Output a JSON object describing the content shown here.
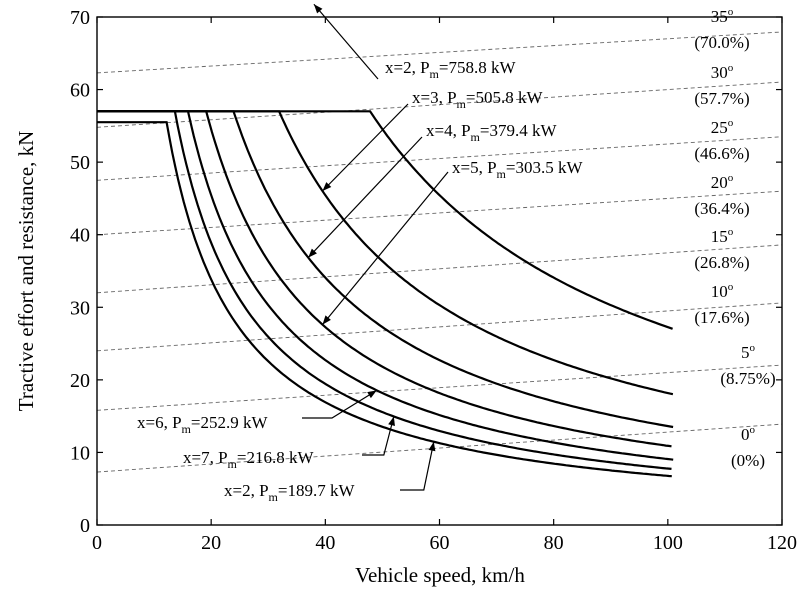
{
  "chart_data": {
    "type": "line",
    "title": "",
    "xlabel": "Vehicle speed, km/h",
    "ylabel": "Tractive effort and resistance, kN",
    "xlim": [
      0,
      120
    ],
    "ylim": [
      0,
      70
    ],
    "xticks": [
      0,
      20,
      40,
      60,
      80,
      100,
      120
    ],
    "yticks": [
      0,
      10,
      20,
      30,
      40,
      50,
      60,
      70
    ],
    "grid": false,
    "effort_curves": [
      {
        "label": "x=2, P",
        "sub": "m",
        "value": "=758.8 kW",
        "flat_kN": 57.0,
        "corner_kmh": 47,
        "end_kmh": 101,
        "end_kN": 27.0
      },
      {
        "label": "x=3, P",
        "sub": "m",
        "value": "=505.8 kW",
        "flat_kN": 57.0,
        "corner_kmh": 32,
        "end_kmh": 101,
        "end_kN": 18.0
      },
      {
        "label": "x=4, P",
        "sub": "m",
        "value": "=379.4 kW",
        "flat_kN": 57.0,
        "corner_kmh": 24,
        "end_kmh": 101,
        "end_kN": 13.5
      },
      {
        "label": "x=5, P",
        "sub": "m",
        "value": "=303.5 kW",
        "flat_kN": 57.0,
        "corner_kmh": 19,
        "end_kmh": 101,
        "end_kN": 10.8
      },
      {
        "label": "x=6, P",
        "sub": "m",
        "value": "=252.9 kW",
        "flat_kN": 57.0,
        "corner_kmh": 16,
        "end_kmh": 101,
        "end_kN": 9.0
      },
      {
        "label": "x=7, P",
        "sub": "m",
        "value": "=216.8 kW",
        "flat_kN": 57.0,
        "corner_kmh": 13.5,
        "end_kmh": 101,
        "end_kN": 7.7
      },
      {
        "label": "x=2, P",
        "sub": "m",
        "value": "=189.7 kW",
        "flat_kN": 55.5,
        "corner_kmh": 12,
        "end_kmh": 101,
        "end_kN": 6.7
      }
    ],
    "resistance_lines": [
      {
        "deg": "35",
        "pct": "(70.0%)",
        "y0_kN": 62.3,
        "y100_kN": 67.0
      },
      {
        "deg": "30",
        "pct": "(57.7%)",
        "y0_kN": 54.8,
        "y100_kN": 60.0
      },
      {
        "deg": "25",
        "pct": "(46.6%)",
        "y0_kN": 47.5,
        "y100_kN": 52.5
      },
      {
        "deg": "20",
        "pct": "(36.4%)",
        "y0_kN": 40.0,
        "y100_kN": 45.0
      },
      {
        "deg": "15",
        "pct": "(26.8%)",
        "y0_kN": 32.0,
        "y100_kN": 37.5
      },
      {
        "deg": "10",
        "pct": "(17.6%)",
        "y0_kN": 24.0,
        "y100_kN": 29.5
      },
      {
        "deg": "5",
        "pct": "(8.75%)",
        "y0_kN": 15.8,
        "y100_kN": 21.0
      },
      {
        "deg": "0",
        "pct": "(0%)",
        "y0_kN": 7.3,
        "y100_kN": 12.8
      }
    ],
    "degree_mark": "o"
  }
}
